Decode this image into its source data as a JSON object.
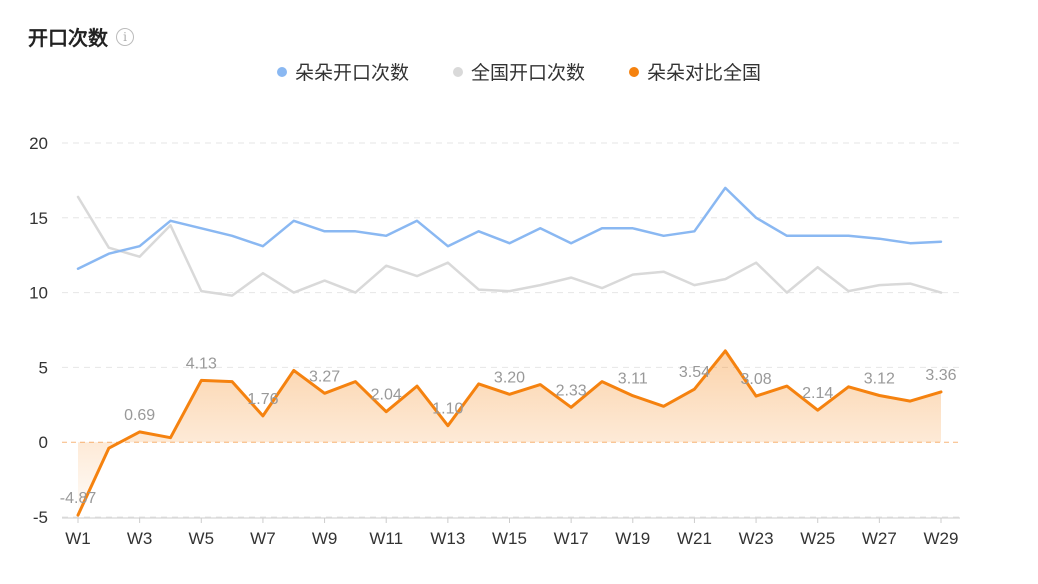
{
  "title": "开口次数",
  "info_icon": "info-icon",
  "legend": [
    {
      "name": "朵朵开口次数",
      "color": "#8ab8f2"
    },
    {
      "name": "全国开口次数",
      "color": "#d9d9d9"
    },
    {
      "name": "朵朵对比全国",
      "color": "#f5820f"
    }
  ],
  "chart_data": {
    "type": "line",
    "x": [
      "W1",
      "W2",
      "W3",
      "W4",
      "W5",
      "W6",
      "W7",
      "W8",
      "W9",
      "W10",
      "W11",
      "W12",
      "W13",
      "W14",
      "W15",
      "W16",
      "W17",
      "W18",
      "W19",
      "W20",
      "W21",
      "W22",
      "W23",
      "W24",
      "W25",
      "W26",
      "W27",
      "W28",
      "W29"
    ],
    "x_tick_labels": [
      "W1",
      "W3",
      "W5",
      "W7",
      "W9",
      "W11",
      "W13",
      "W15",
      "W17",
      "W19",
      "W21",
      "W23",
      "W25",
      "W27",
      "W29"
    ],
    "ylim": [
      -5,
      20
    ],
    "y_ticks": [
      20,
      15,
      10,
      5,
      0,
      -5
    ],
    "grid": true,
    "series": [
      {
        "name": "朵朵开口次数",
        "color": "#8ab8f2",
        "values": [
          11.6,
          12.6,
          13.1,
          14.8,
          14.3,
          13.8,
          13.1,
          14.8,
          14.1,
          14.1,
          13.8,
          14.8,
          13.1,
          14.1,
          13.3,
          14.3,
          13.3,
          14.3,
          14.3,
          13.8,
          14.1,
          17.0,
          15.0,
          13.8,
          13.8,
          13.8,
          13.6,
          13.3,
          13.4
        ]
      },
      {
        "name": "全国开口次数",
        "color": "#d9d9d9",
        "values": [
          16.4,
          13.0,
          12.4,
          14.5,
          10.1,
          9.8,
          11.3,
          10.0,
          10.8,
          10.0,
          11.8,
          11.1,
          12.0,
          10.2,
          10.1,
          10.5,
          11.0,
          10.3,
          11.2,
          11.4,
          10.5,
          10.9,
          12.0,
          10.0,
          11.7,
          10.1,
          10.5,
          10.6,
          10.0
        ]
      },
      {
        "name": "朵朵对比全国",
        "color": "#f5820f",
        "values": [
          -4.87,
          -0.4,
          0.69,
          0.3,
          4.13,
          4.05,
          1.76,
          4.8,
          3.27,
          4.05,
          2.04,
          3.75,
          1.1,
          3.9,
          3.2,
          3.85,
          2.33,
          4.05,
          3.11,
          2.4,
          3.54,
          6.1,
          3.08,
          3.75,
          2.14,
          3.7,
          3.12,
          2.75,
          3.36
        ],
        "data_labels": {
          "0": "-4.87",
          "2": "0.69",
          "4": "4.13",
          "6": "1.76",
          "8": "3.27",
          "10": "2.04",
          "12": "1.10",
          "14": "3.20",
          "16": "2.33",
          "18": "3.11",
          "20": "3.54",
          "22": "3.08",
          "24": "2.14",
          "26": "3.12",
          "28": "3.36"
        }
      }
    ]
  }
}
